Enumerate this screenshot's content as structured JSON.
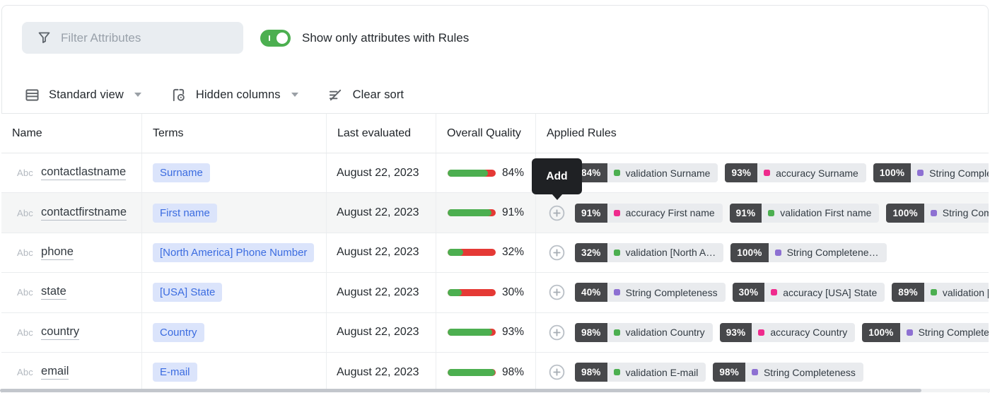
{
  "filter": {
    "placeholder": "Filter Attributes"
  },
  "toggle": {
    "label": "Show only attributes with Rules",
    "state": "on"
  },
  "toolbar": {
    "view_label": "Standard view",
    "hidden_columns_label": "Hidden columns",
    "clear_sort_label": "Clear sort"
  },
  "tooltip": {
    "label": "Add"
  },
  "palette": {
    "green": "#4caf50",
    "pink": "#ef2b8d",
    "purple": "#8d70d2",
    "term_blue": "#3b6ce0",
    "term_bg": "#dbe4fb",
    "badge_dark": "#47484b",
    "bar_red": "#e53935",
    "bar_green": "#4caf50",
    "toggle_green": "#4caf50",
    "tooltip_bg": "#1f2124"
  },
  "table": {
    "columns": [
      "Name",
      "Terms",
      "Last evaluated",
      "Overall Quality",
      "Applied Rules"
    ],
    "rows": [
      {
        "type_prefix": "Abc",
        "name": "contactlastname",
        "term": "Surname",
        "last_evaluated": "August 22, 2023",
        "quality_pct": 84,
        "quality_label": "84%",
        "hovered": false,
        "rules": [
          {
            "pct": "84%",
            "color": "green",
            "label": "validation Surname"
          },
          {
            "pct": "93%",
            "color": "pink",
            "label": "accuracy Surname"
          },
          {
            "pct": "100%",
            "color": "purple",
            "label": "String Completeness"
          }
        ]
      },
      {
        "type_prefix": "Abc",
        "name": "contactfirstname",
        "term": "First name",
        "last_evaluated": "August 22, 2023",
        "quality_pct": 91,
        "quality_label": "91%",
        "hovered": true,
        "rules": [
          {
            "pct": "91%",
            "color": "pink",
            "label": "accuracy First name"
          },
          {
            "pct": "91%",
            "color": "green",
            "label": "validation First name"
          },
          {
            "pct": "100%",
            "color": "purple",
            "label": "String Completeness"
          }
        ]
      },
      {
        "type_prefix": "Abc",
        "name": "phone",
        "term": "[North America] Phone Number",
        "last_evaluated": "August 22, 2023",
        "quality_pct": 32,
        "quality_label": "32%",
        "hovered": false,
        "rules": [
          {
            "pct": "32%",
            "color": "green",
            "label": "validation [North A…"
          },
          {
            "pct": "100%",
            "color": "purple",
            "label": "String Completene…"
          }
        ]
      },
      {
        "type_prefix": "Abc",
        "name": "state",
        "term": "[USA] State",
        "last_evaluated": "August 22, 2023",
        "quality_pct": 30,
        "quality_label": "30%",
        "hovered": false,
        "rules": [
          {
            "pct": "40%",
            "color": "purple",
            "label": "String Completeness"
          },
          {
            "pct": "30%",
            "color": "pink",
            "label": "accuracy [USA] State"
          },
          {
            "pct": "89%",
            "color": "green",
            "label": "validation [USA] State"
          }
        ]
      },
      {
        "type_prefix": "Abc",
        "name": "country",
        "term": "Country",
        "last_evaluated": "August 22, 2023",
        "quality_pct": 93,
        "quality_label": "93%",
        "hovered": false,
        "rules": [
          {
            "pct": "98%",
            "color": "green",
            "label": "validation Country"
          },
          {
            "pct": "93%",
            "color": "pink",
            "label": "accuracy Country"
          },
          {
            "pct": "100%",
            "color": "purple",
            "label": "String Completeness"
          }
        ]
      },
      {
        "type_prefix": "Abc",
        "name": "email",
        "term": "E-mail",
        "last_evaluated": "August 22, 2023",
        "quality_pct": 98,
        "quality_label": "98%",
        "hovered": false,
        "rules": [
          {
            "pct": "98%",
            "color": "green",
            "label": "validation E-mail"
          },
          {
            "pct": "98%",
            "color": "purple",
            "label": "String Completeness"
          }
        ]
      }
    ]
  }
}
